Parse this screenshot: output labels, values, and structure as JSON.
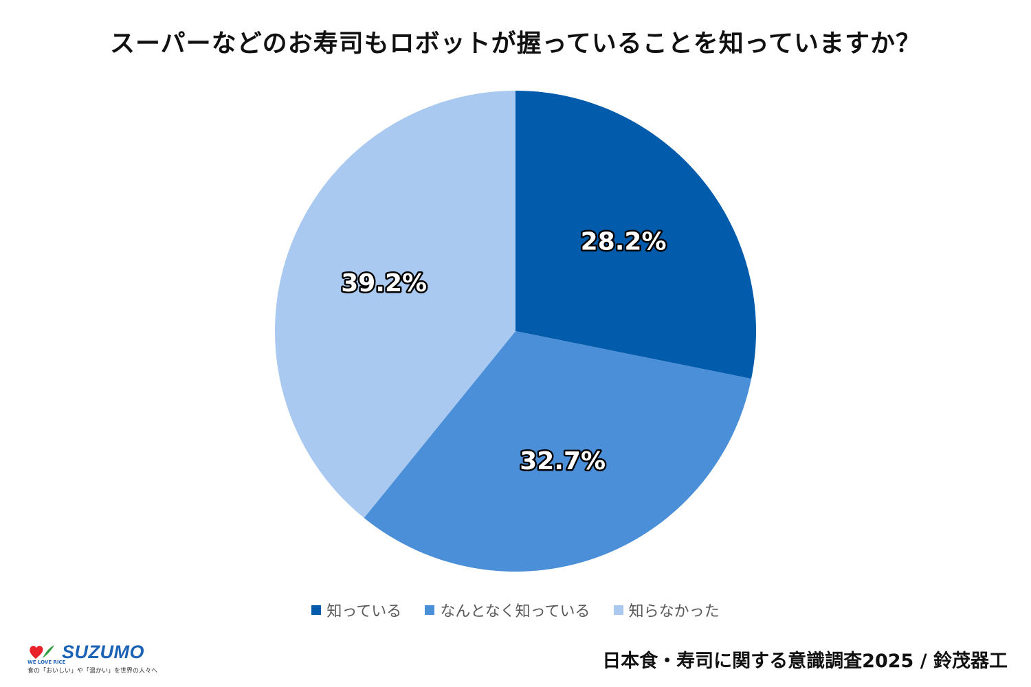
{
  "title": "スーパーなどのお寿司もロボットが握っていることを知っていますか？",
  "chart_data": {
    "type": "pie",
    "title": "スーパーなどのお寿司もロボットが握っていることを知っていますか？",
    "categories": [
      "知っている",
      "なんとなく知っている",
      "知らなかった"
    ],
    "values": [
      28.2,
      32.7,
      39.2
    ],
    "labels": [
      "28.2%",
      "32.7%",
      "39.2%"
    ],
    "colors": [
      "#025bab",
      "#4a8fd7",
      "#a9c9f0"
    ],
    "legend_position": "bottom",
    "start": "12 o'clock, clockwise"
  },
  "legend": [
    {
      "label": "知っている",
      "color": "#025bab"
    },
    {
      "label": "なんとなく知っている",
      "color": "#4a8fd7"
    },
    {
      "label": "知らなかった",
      "color": "#a9c9f0"
    }
  ],
  "logo": {
    "name": "SUZUMO",
    "welove": "WE LOVE RICE",
    "tagline": "食の「おいしい」や「温かい」を世界の人々へ",
    "heart_colors": [
      "#e8212a",
      "#2e9e3e"
    ]
  },
  "source": "日本食・寿司に関する意識調査2025 / 鈴茂器工"
}
